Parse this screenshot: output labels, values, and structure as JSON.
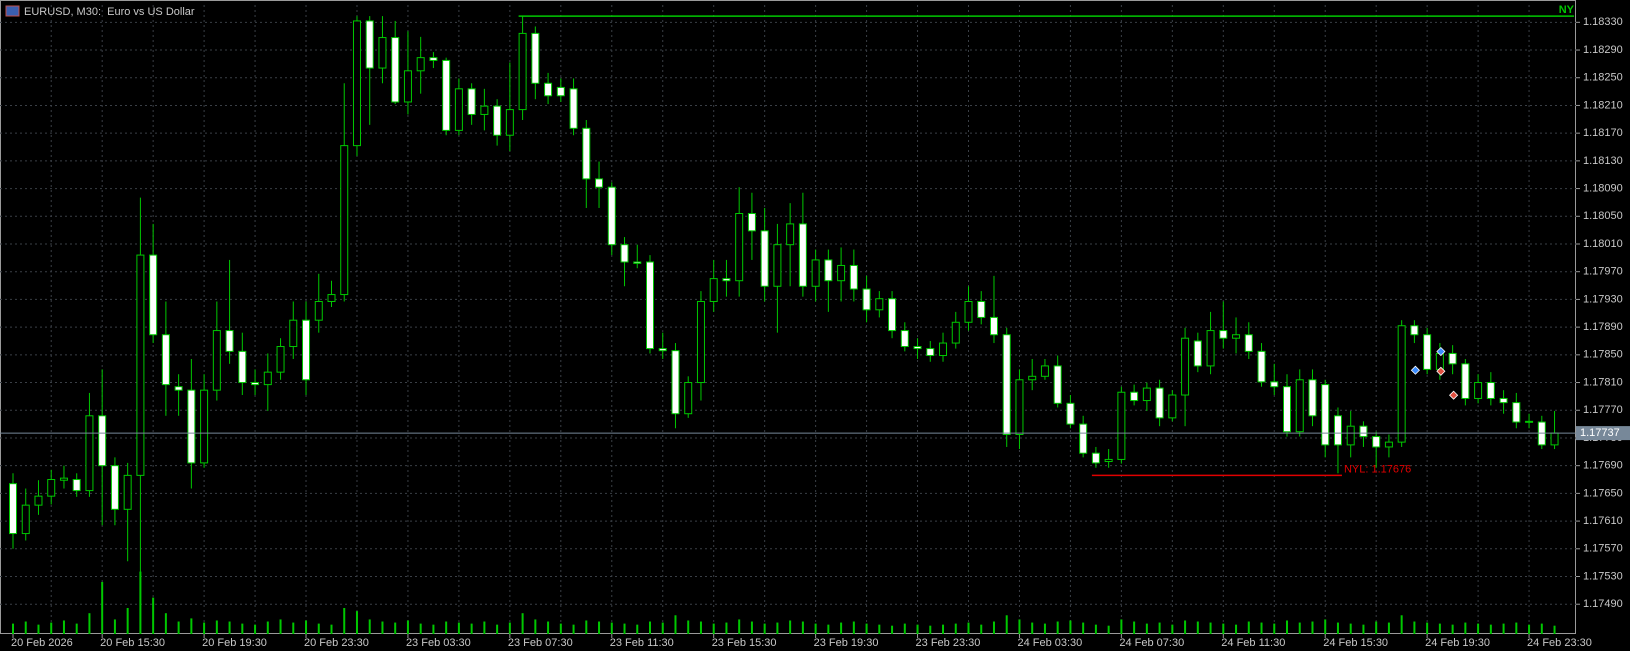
{
  "chart_data": {
    "type": "candlestick",
    "title": "EURUSD, M30:  Euro vs US Dollar",
    "categories": [
      "20 Feb 2026",
      null,
      null,
      null,
      null,
      null,
      null,
      "20 Feb 15:30",
      null,
      null,
      null,
      null,
      null,
      null,
      null,
      "20 Feb 19:30",
      null,
      null,
      null,
      null,
      null,
      null,
      null,
      "20 Feb 23:30",
      null,
      null,
      null,
      null,
      null,
      null,
      null,
      "23 Feb 03:30",
      null,
      null,
      null,
      null,
      null,
      null,
      null,
      "23 Feb 07:30",
      null,
      null,
      null,
      null,
      null,
      null,
      null,
      "23 Feb 11:30",
      null,
      null,
      null,
      null,
      null,
      null,
      null,
      "23 Feb 15:30",
      null,
      null,
      null,
      null,
      null,
      null,
      null,
      "23 Feb 19:30",
      null,
      null,
      null,
      null,
      null,
      null,
      null,
      "23 Feb 23:30",
      null,
      null,
      null,
      null,
      null,
      null,
      null,
      "24 Feb 03:30",
      null,
      null,
      null,
      null,
      null,
      null,
      null,
      "24 Feb 07:30",
      null,
      null,
      null,
      null,
      null,
      null,
      null,
      "24 Feb 11:30",
      null,
      null,
      null,
      null,
      null,
      null,
      null,
      "24 Feb 15:30",
      null,
      null,
      null,
      null,
      null,
      null,
      null,
      "24 Feb 19:30",
      null,
      null,
      null,
      null,
      null,
      null,
      null,
      "24 Feb 23:30",
      null,
      null
    ],
    "open": [
      1.17664,
      1.17592,
      1.17633,
      1.17646,
      1.17669,
      1.1767,
      1.17654,
      1.17762,
      1.1769,
      1.17627,
      1.17676,
      1.17994,
      1.17879,
      1.17804,
      1.17799,
      1.17694,
      1.17799,
      1.17885,
      1.17855,
      1.1781,
      1.17807,
      1.17825,
      1.17862,
      1.179,
      1.179,
      1.17927,
      1.17937,
      1.18152,
      1.18332,
      1.18264,
      1.18308,
      1.18215,
      1.1826,
      1.18279,
      1.18275,
      1.18174,
      1.18234,
      1.18197,
      1.18209,
      1.18167,
      1.18204,
      1.18314,
      1.18242,
      1.18236,
      1.18234,
      1.18177,
      1.18104,
      1.18092,
      1.18009,
      1.17984,
      1.17984,
      1.17859,
      1.17856,
      1.17765,
      1.1781,
      1.17927,
      1.1796,
      1.17957,
      1.18054,
      1.18029,
      1.17949,
      1.18009,
      1.18039,
      1.17949,
      1.17987,
      1.17957,
      1.17979,
      1.17945,
      1.17915,
      1.17931,
      1.17885,
      1.17862,
      1.17859,
      1.17849,
      1.17867,
      1.17897,
      1.17927,
      1.17904,
      1.17879,
      1.17735,
      1.17814,
      1.17819,
      1.17834,
      1.1778,
      1.1775,
      1.17708,
      1.17696,
      1.17699,
      1.17796,
      1.17784,
      1.17802,
      1.17759,
      1.17792,
      1.1787,
      1.17834,
      1.17885,
      1.17874,
      1.17879,
      1.17855,
      1.17811,
      1.17804,
      1.17739,
      1.17814,
      1.17807,
      1.17762,
      1.1772,
      1.17747,
      1.17732,
      1.17717,
      1.17724,
      1.17892,
      1.17879,
      1.17829,
      1.17852,
      1.17837,
      1.17787,
      1.1781,
      1.17787,
      1.17781,
      1.17753,
      1.17753,
      1.1772
    ],
    "high": [
      1.17679,
      1.17657,
      1.17669,
      1.17684,
      1.1769,
      1.17679,
      1.17795,
      1.17829,
      1.17702,
      1.17694,
      1.18077,
      1.18039,
      1.17927,
      1.17822,
      1.17844,
      1.17822,
      1.17927,
      1.17987,
      1.17882,
      1.17829,
      1.17852,
      1.17874,
      1.17927,
      1.17927,
      1.17967,
      1.17957,
      1.18242,
      1.18339,
      1.18339,
      1.18339,
      1.18332,
      1.18317,
      1.18309,
      1.18287,
      1.18279,
      1.18249,
      1.18242,
      1.18234,
      1.18219,
      1.18272,
      1.18339,
      1.18324,
      1.18257,
      1.18249,
      1.18249,
      1.18189,
      1.18129,
      1.18099,
      1.1802,
      1.18009,
      1.17994,
      1.17882,
      1.17867,
      1.17819,
      1.17942,
      1.17987,
      1.17987,
      1.18092,
      1.18084,
      1.18062,
      1.18039,
      1.18069,
      1.18084,
      1.18002,
      1.18002,
      1.18005,
      1.18002,
      1.17964,
      1.17942,
      1.17942,
      1.17897,
      1.17874,
      1.1787,
      1.17882,
      1.17912,
      1.17949,
      1.17942,
      1.17964,
      1.17889,
      1.17829,
      1.17844,
      1.17844,
      1.17849,
      1.17792,
      1.17762,
      1.17717,
      1.17714,
      1.17804,
      1.17807,
      1.1781,
      1.17814,
      1.17799,
      1.17889,
      1.17882,
      1.17912,
      1.17927,
      1.17904,
      1.17897,
      1.17867,
      1.17837,
      1.17822,
      1.17829,
      1.17829,
      1.17814,
      1.17774,
      1.17769,
      1.17754,
      1.17739,
      1.17735,
      1.179,
      1.179,
      1.17889,
      1.17867,
      1.17864,
      1.17844,
      1.17822,
      1.17825,
      1.17799,
      1.17795,
      1.17765,
      1.17762,
      1.17769
    ],
    "low": [
      1.1757,
      1.17582,
      1.17619,
      1.17634,
      1.17657,
      1.17645,
      1.17645,
      1.17604,
      1.17604,
      1.17552,
      1.17529,
      1.17867,
      1.17762,
      1.17762,
      1.17657,
      1.17687,
      1.17784,
      1.17837,
      1.17792,
      1.17792,
      1.17769,
      1.17814,
      1.17844,
      1.17792,
      1.17882,
      1.17919,
      1.17927,
      1.18137,
      1.18182,
      1.18242,
      1.18212,
      1.18197,
      1.18227,
      1.18264,
      1.18167,
      1.18167,
      1.18182,
      1.18174,
      1.18152,
      1.18144,
      1.18189,
      1.18219,
      1.18212,
      1.18215,
      1.18167,
      1.18062,
      1.18062,
      1.17994,
      1.17949,
      1.17975,
      1.17852,
      1.17844,
      1.17744,
      1.17759,
      1.17784,
      1.17912,
      1.17934,
      1.17934,
      1.17987,
      1.17927,
      1.17882,
      1.17949,
      1.17934,
      1.17927,
      1.17912,
      1.17927,
      1.17927,
      1.17897,
      1.17904,
      1.17874,
      1.17855,
      1.17844,
      1.1784,
      1.1784,
      1.17859,
      1.17885,
      1.17894,
      1.17867,
      1.17717,
      1.17714,
      1.17799,
      1.17814,
      1.17774,
      1.17744,
      1.17702,
      1.17687,
      1.17687,
      1.17693,
      1.17777,
      1.17769,
      1.17747,
      1.17754,
      1.17747,
      1.17825,
      1.17822,
      1.17859,
      1.17852,
      1.17844,
      1.17804,
      1.17792,
      1.17732,
      1.17732,
      1.17747,
      1.17702,
      1.17679,
      1.17702,
      1.17717,
      1.17687,
      1.17702,
      1.17717,
      1.17867,
      1.17822,
      1.17814,
      1.17822,
      1.17777,
      1.1778,
      1.17777,
      1.17765,
      1.17744,
      1.17744,
      1.17714,
      1.17714
    ],
    "close": [
      1.17592,
      1.17633,
      1.17646,
      1.1767,
      1.17672,
      1.17654,
      1.17762,
      1.1769,
      1.17627,
      1.17676,
      1.17994,
      1.17879,
      1.17807,
      1.17799,
      1.17694,
      1.17799,
      1.17885,
      1.17855,
      1.1781,
      1.17807,
      1.17825,
      1.17862,
      1.179,
      1.17814,
      1.17927,
      1.17937,
      1.18152,
      1.18332,
      1.18264,
      1.18308,
      1.18215,
      1.1826,
      1.18279,
      1.18275,
      1.18174,
      1.18234,
      1.18197,
      1.18209,
      1.18167,
      1.18204,
      1.18314,
      1.18242,
      1.18224,
      1.18224,
      1.18177,
      1.18104,
      1.18092,
      1.18009,
      1.17984,
      1.17982,
      1.17859,
      1.17856,
      1.17765,
      1.1781,
      1.17927,
      1.1796,
      1.17957,
      1.18054,
      1.18029,
      1.17949,
      1.18009,
      1.18039,
      1.17949,
      1.17987,
      1.17957,
      1.17979,
      1.17945,
      1.17915,
      1.17931,
      1.17885,
      1.17862,
      1.17859,
      1.17849,
      1.17867,
      1.17897,
      1.17927,
      1.17904,
      1.17879,
      1.17735,
      1.17814,
      1.17819,
      1.17834,
      1.1778,
      1.1775,
      1.17708,
      1.17694,
      1.17699,
      1.17796,
      1.17784,
      1.17802,
      1.17759,
      1.17792,
      1.17874,
      1.17834,
      1.17885,
      1.17874,
      1.17879,
      1.17855,
      1.17811,
      1.17804,
      1.17739,
      1.17814,
      1.17762,
      1.1772,
      1.1772,
      1.17747,
      1.17732,
      1.17717,
      1.17724,
      1.17892,
      1.17879,
      1.17829,
      1.17852,
      1.17837,
      1.17787,
      1.1781,
      1.17787,
      1.17781,
      1.17753,
      1.17754,
      1.1772,
      1.17737
    ],
    "volume": [
      10,
      12,
      9,
      11,
      13,
      10,
      20,
      50,
      14,
      25,
      60,
      35,
      20,
      12,
      15,
      11,
      13,
      12,
      10,
      9,
      12,
      14,
      11,
      13,
      10,
      9,
      25,
      22,
      14,
      12,
      11,
      13,
      10,
      9,
      12,
      11,
      10,
      12,
      9,
      11,
      20,
      14,
      12,
      10,
      9,
      13,
      12,
      11,
      10,
      9,
      12,
      11,
      18,
      13,
      12,
      10,
      11,
      14,
      12,
      10,
      11,
      13,
      12,
      10,
      9,
      11,
      12,
      10,
      9,
      8,
      10,
      9,
      8,
      9,
      10,
      11,
      9,
      12,
      18,
      14,
      11,
      10,
      12,
      13,
      11,
      9,
      8,
      14,
      12,
      10,
      11,
      9,
      13,
      12,
      11,
      10,
      9,
      12,
      11,
      10,
      13,
      11,
      12,
      14,
      11,
      10,
      9,
      12,
      11,
      18,
      12,
      11,
      10,
      9,
      11,
      10,
      9,
      10,
      11,
      9,
      10,
      8
    ],
    "up_color": "#000000",
    "down_color": "#ffffff",
    "wick_color": "#00c800",
    "ylim": [
      1.17447,
      1.18355
    ],
    "yticks": [
      {
        "value": 1.1833,
        "label": "1.18330"
      },
      {
        "value": 1.1829,
        "label": "1.18290"
      },
      {
        "value": 1.1825,
        "label": "1.18250"
      },
      {
        "value": 1.1821,
        "label": "1.18210"
      },
      {
        "value": 1.1817,
        "label": "1.18170"
      },
      {
        "value": 1.1813,
        "label": "1.18130"
      },
      {
        "value": 1.1809,
        "label": "1.18090"
      },
      {
        "value": 1.1805,
        "label": "1.18050"
      },
      {
        "value": 1.1801,
        "label": "1.18010"
      },
      {
        "value": 1.1797,
        "label": "1.17970"
      },
      {
        "value": 1.1793,
        "label": "1.17930"
      },
      {
        "value": 1.1789,
        "label": "1.17890"
      },
      {
        "value": 1.1785,
        "label": "1.17850"
      },
      {
        "value": 1.1781,
        "label": "1.17810"
      },
      {
        "value": 1.1777,
        "label": "1.17770"
      },
      {
        "value": 1.1773,
        "label": "1.17730"
      },
      {
        "value": 1.1769,
        "label": "1.17690"
      },
      {
        "value": 1.1765,
        "label": "1.17650"
      },
      {
        "value": 1.1761,
        "label": "1.17610"
      },
      {
        "value": 1.1757,
        "label": "1.17570"
      },
      {
        "value": 1.1753,
        "label": "1.17530"
      },
      {
        "value": 1.1749,
        "label": "1.17490"
      }
    ],
    "grid": true,
    "current_price": 1.17737,
    "annotations": [
      {
        "label": "NY",
        "value": 1.18339,
        "color": "#00c800"
      },
      {
        "label": "NYL: 1.17676",
        "value": 1.17676,
        "color": "#e00000"
      }
    ]
  }
}
